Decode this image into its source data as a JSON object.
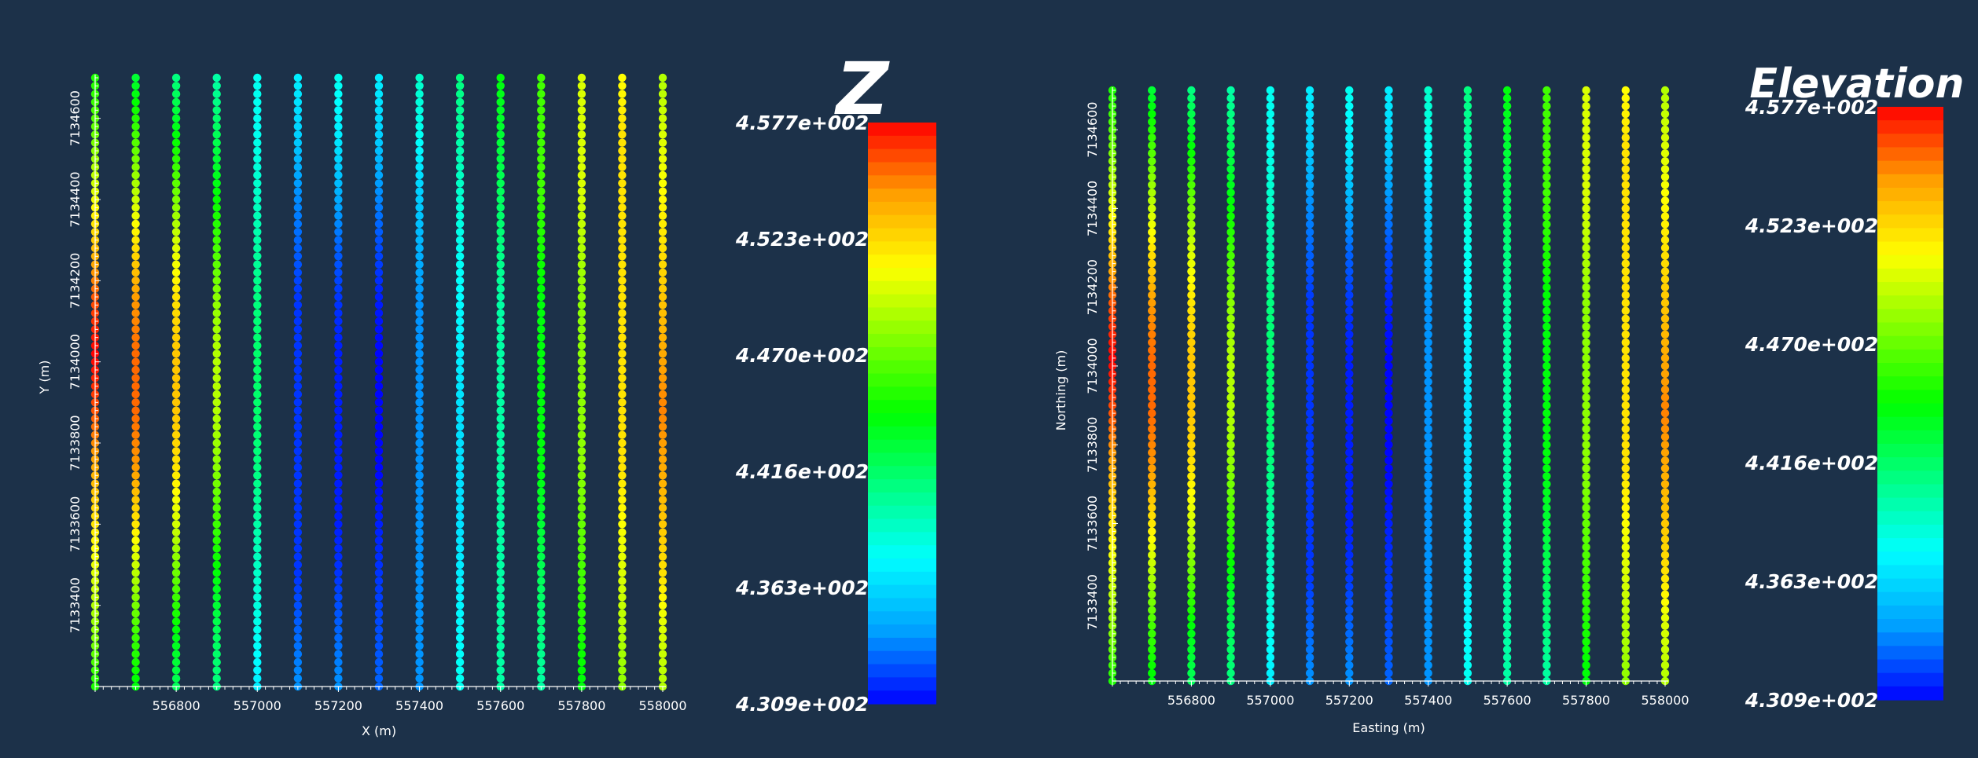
{
  "colors": {
    "background": "#1c3149",
    "axis": "#ffffff",
    "text": "#ffffff",
    "colormap": [
      "#0000ff",
      "#00a0ff",
      "#00ffff",
      "#00ff80",
      "#00ff00",
      "#80ff00",
      "#ffff00",
      "#ffa000",
      "#ff0000"
    ]
  },
  "chart_data": [
    {
      "type": "scatter",
      "title": "",
      "xlabel": "X (m)",
      "ylabel": "Y (m)",
      "xlim": [
        556600,
        558000
      ],
      "ylim": [
        7133200,
        7134700
      ],
      "x_ticks": [
        "556800",
        "557000",
        "557200",
        "557400",
        "557600",
        "557800",
        "558000"
      ],
      "y_ticks": [
        "7133400",
        "7133600",
        "7133800",
        "7134000",
        "7134200",
        "7134400",
        "7134600"
      ],
      "colorbar": {
        "title": "Z",
        "min": 430.9,
        "max": 457.7,
        "labels": [
          "4.577e+002",
          "4.523e+002",
          "4.470e+002",
          "4.416e+002",
          "4.363e+002",
          "4.309e+002"
        ]
      },
      "point_spacing_y": 20,
      "series": [
        {
          "x": 556600,
          "z_samples": [
            445,
            448,
            450,
            452,
            454,
            456,
            457.7,
            456,
            453,
            450,
            447,
            445
          ]
        },
        {
          "x": 556700,
          "z_samples": [
            444,
            446,
            449,
            452,
            454.5,
            455.5,
            455.5,
            454.5,
            452,
            449,
            446,
            443
          ]
        },
        {
          "x": 556800,
          "z_samples": [
            442,
            444,
            447,
            450,
            452,
            453,
            453,
            452,
            450,
            447,
            444,
            441
          ]
        },
        {
          "x": 556900,
          "z_samples": [
            441,
            442,
            444,
            446,
            448,
            449,
            449,
            448,
            446,
            444,
            442,
            440
          ]
        },
        {
          "x": 557000,
          "z_samples": [
            437,
            438,
            439,
            440,
            441,
            441.5,
            441.5,
            441,
            440,
            439,
            438,
            438
          ]
        },
        {
          "x": 557100,
          "z_samples": [
            434,
            433,
            432,
            432,
            432,
            432,
            432,
            432,
            433,
            434,
            436,
            437
          ]
        },
        {
          "x": 557200,
          "z_samples": [
            434,
            433,
            432,
            431.5,
            431.5,
            431.5,
            431.5,
            432,
            433,
            435,
            437,
            438
          ]
        },
        {
          "x": 557300,
          "z_samples": [
            433,
            432.5,
            432,
            431.5,
            431,
            431,
            431,
            431.5,
            432.5,
            434,
            436,
            437
          ]
        },
        {
          "x": 557400,
          "z_samples": [
            434,
            434,
            434,
            434,
            434,
            434,
            434,
            434,
            435,
            436,
            438,
            439
          ]
        },
        {
          "x": 557500,
          "z_samples": [
            438,
            437.5,
            437,
            436.5,
            436.5,
            436.5,
            437,
            437.5,
            438,
            439,
            440,
            441
          ]
        },
        {
          "x": 557600,
          "z_samples": [
            440,
            440,
            440,
            440,
            440,
            440,
            440,
            440,
            441,
            442,
            443,
            444
          ]
        },
        {
          "x": 557700,
          "z_samples": [
            440,
            441,
            442,
            443,
            444,
            444,
            444,
            444,
            445,
            446,
            446,
            446
          ]
        },
        {
          "x": 557800,
          "z_samples": [
            444,
            445,
            446,
            447,
            448,
            448,
            448,
            448,
            449,
            450,
            450,
            450
          ]
        },
        {
          "x": 557900,
          "z_samples": [
            448,
            449,
            450,
            451,
            452,
            452,
            452,
            452,
            452,
            452,
            452,
            451
          ]
        },
        {
          "x": 558000,
          "z_samples": [
            449,
            450,
            452,
            453,
            454,
            455,
            454,
            453,
            452,
            451,
            450,
            449
          ]
        }
      ]
    },
    {
      "type": "scatter",
      "title": "",
      "xlabel": "Easting (m)",
      "ylabel": "Northing (m)",
      "xlim": [
        556600,
        558000
      ],
      "ylim": [
        7133200,
        7134700
      ],
      "x_ticks": [
        "556800",
        "557000",
        "557200",
        "557400",
        "557600",
        "557800",
        "558000"
      ],
      "y_ticks": [
        "7133400",
        "7133600",
        "7133800",
        "7134000",
        "7134200",
        "7134400",
        "7134600"
      ],
      "colorbar": {
        "title": "Elevation",
        "min": 430.9,
        "max": 457.7,
        "labels": [
          "4.577e+002",
          "4.523e+002",
          "4.470e+002",
          "4.416e+002",
          "4.363e+002",
          "4.309e+002"
        ]
      },
      "point_spacing_y": 20,
      "series": [
        {
          "x": 556600,
          "z_samples": [
            445,
            448,
            450,
            452,
            454,
            456,
            457.7,
            456,
            453,
            450,
            447,
            445
          ]
        },
        {
          "x": 556700,
          "z_samples": [
            444,
            446,
            449,
            452,
            454.5,
            455.5,
            455.5,
            454.5,
            452,
            449,
            446,
            443
          ]
        },
        {
          "x": 556800,
          "z_samples": [
            442,
            444,
            447,
            450,
            452,
            453,
            453,
            452,
            450,
            447,
            444,
            441
          ]
        },
        {
          "x": 556900,
          "z_samples": [
            441,
            442,
            444,
            446,
            448,
            449,
            449,
            448,
            446,
            444,
            442,
            440
          ]
        },
        {
          "x": 557000,
          "z_samples": [
            437,
            438,
            439,
            440,
            441,
            441.5,
            441.5,
            441,
            440,
            439,
            438,
            438
          ]
        },
        {
          "x": 557100,
          "z_samples": [
            434,
            433,
            432,
            432,
            432,
            432,
            432,
            432,
            433,
            434,
            436,
            437
          ]
        },
        {
          "x": 557200,
          "z_samples": [
            434,
            433,
            432,
            431.5,
            431.5,
            431.5,
            431.5,
            432,
            433,
            435,
            437,
            438
          ]
        },
        {
          "x": 557300,
          "z_samples": [
            433,
            432.5,
            432,
            431.5,
            431,
            431,
            431,
            431.5,
            432.5,
            434,
            436,
            437
          ]
        },
        {
          "x": 557400,
          "z_samples": [
            434,
            434,
            434,
            434,
            434,
            434,
            434,
            434,
            435,
            436,
            438,
            439
          ]
        },
        {
          "x": 557500,
          "z_samples": [
            438,
            437.5,
            437,
            436.5,
            436.5,
            436.5,
            437,
            437.5,
            438,
            439,
            440,
            441
          ]
        },
        {
          "x": 557600,
          "z_samples": [
            440,
            440,
            440,
            440,
            440,
            440,
            440,
            440,
            441,
            442,
            443,
            444
          ]
        },
        {
          "x": 557700,
          "z_samples": [
            440,
            441,
            442,
            443,
            444,
            444,
            444,
            444,
            445,
            446,
            446,
            446
          ]
        },
        {
          "x": 557800,
          "z_samples": [
            444,
            445,
            446,
            447,
            448,
            448,
            448,
            448,
            449,
            450,
            450,
            450
          ]
        },
        {
          "x": 557900,
          "z_samples": [
            448,
            449,
            450,
            451,
            452,
            452,
            452,
            452,
            452,
            452,
            452,
            451
          ]
        },
        {
          "x": 558000,
          "z_samples": [
            449,
            450,
            452,
            453,
            454,
            455,
            454,
            453,
            452,
            451,
            450,
            449
          ]
        }
      ]
    }
  ]
}
